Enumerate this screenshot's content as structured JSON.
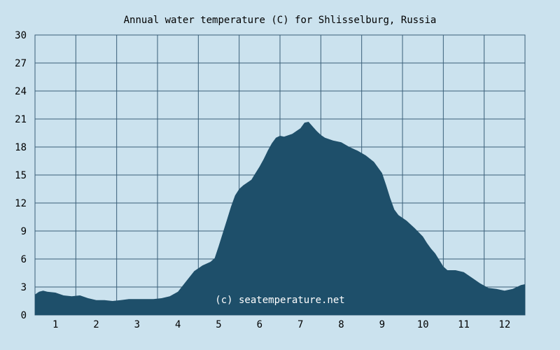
{
  "chart_data": {
    "type": "area",
    "title": "Annual water temperature (C) for Shlisselburg, Russia",
    "xlabel": "",
    "ylabel": "",
    "ylim": [
      0,
      30
    ],
    "xlim": [
      0.5,
      12.5
    ],
    "y_ticks": [
      "0",
      "3",
      "6",
      "9",
      "12",
      "15",
      "18",
      "21",
      "24",
      "27",
      "30"
    ],
    "x_ticks": [
      "1",
      "2",
      "3",
      "4",
      "5",
      "6",
      "7",
      "8",
      "9",
      "10",
      "11",
      "12"
    ],
    "grid": true,
    "watermark": "(c) seatemperature.net",
    "colors": {
      "background": "#cbe2ee",
      "area": "#1e4f6a",
      "grid": "#3a5f78",
      "text": "#000000"
    },
    "x": [
      0.5,
      0.6,
      0.7,
      0.8,
      1.0,
      1.2,
      1.4,
      1.6,
      1.8,
      2.0,
      2.2,
      2.4,
      2.6,
      2.8,
      3.0,
      3.2,
      3.4,
      3.6,
      3.8,
      4.0,
      4.2,
      4.4,
      4.6,
      4.8,
      4.9,
      5.0,
      5.1,
      5.2,
      5.3,
      5.4,
      5.5,
      5.6,
      5.8,
      5.9,
      6.0,
      6.1,
      6.2,
      6.3,
      6.4,
      6.5,
      6.6,
      6.8,
      7.0,
      7.1,
      7.2,
      7.3,
      7.4,
      7.5,
      7.6,
      7.8,
      8.0,
      8.2,
      8.4,
      8.6,
      8.8,
      9.0,
      9.1,
      9.2,
      9.3,
      9.4,
      9.6,
      9.8,
      10.0,
      10.1,
      10.2,
      10.3,
      10.4,
      10.5,
      10.6,
      10.8,
      11.0,
      11.2,
      11.4,
      11.6,
      11.8,
      12.0,
      12.2,
      12.3,
      12.4,
      12.5
    ],
    "y": [
      2.2,
      2.5,
      2.6,
      2.5,
      2.4,
      2.1,
      2.0,
      2.1,
      1.8,
      1.6,
      1.6,
      1.5,
      1.6,
      1.7,
      1.7,
      1.7,
      1.7,
      1.8,
      2.0,
      2.5,
      3.6,
      4.7,
      5.3,
      5.7,
      6.1,
      7.4,
      8.8,
      10.2,
      11.6,
      12.8,
      13.5,
      13.9,
      14.5,
      15.2,
      15.9,
      16.7,
      17.6,
      18.4,
      19.0,
      19.2,
      19.1,
      19.4,
      20.0,
      20.6,
      20.7,
      20.2,
      19.7,
      19.3,
      19.0,
      18.7,
      18.5,
      18.0,
      17.6,
      17.1,
      16.4,
      15.2,
      13.9,
      12.5,
      11.3,
      10.7,
      10.1,
      9.3,
      8.4,
      7.7,
      7.1,
      6.6,
      5.9,
      5.2,
      4.8,
      4.8,
      4.6,
      4.0,
      3.4,
      2.9,
      2.8,
      2.6,
      2.8,
      3.0,
      3.2,
      3.3
    ]
  }
}
